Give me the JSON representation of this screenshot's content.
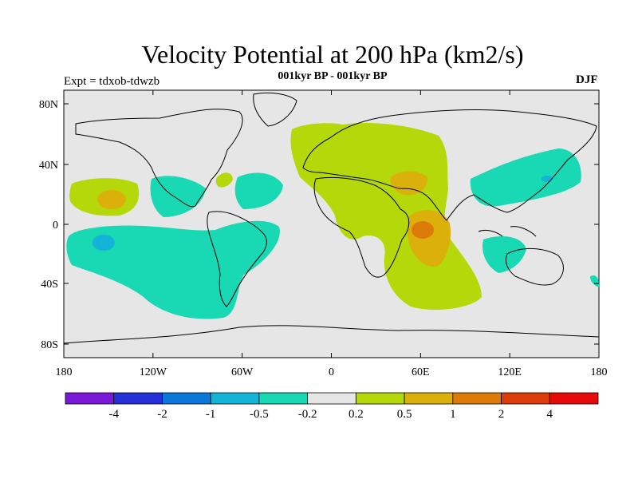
{
  "title": "Velocity Potential at 200 hPa (km2/s)",
  "subtitle": "001kyr BP - 001kyr BP",
  "expt_label": "Expt = tdxob-tdwzb",
  "season": "DJF",
  "map": {
    "lon_ticks": [
      "180",
      "120W",
      "60W",
      "0",
      "60E",
      "120E",
      "180"
    ],
    "lat_ticks": [
      "80N",
      "40N",
      "0",
      "40S",
      "80S"
    ],
    "ocean_color": "#e6e6e6"
  },
  "colorbar": {
    "colors": [
      "#7a18d8",
      "#2330d6",
      "#0a78d8",
      "#13b4d8",
      "#19d8b4",
      "#e6e6e6",
      "#b4d80a",
      "#dcb00a",
      "#dc7a0a",
      "#dc3c0a",
      "#e60a0a"
    ],
    "labels": [
      "-4",
      "-2",
      "-1",
      "-0.5",
      "-0.2",
      "0.2",
      "0.5",
      "1",
      "2",
      "4"
    ]
  }
}
